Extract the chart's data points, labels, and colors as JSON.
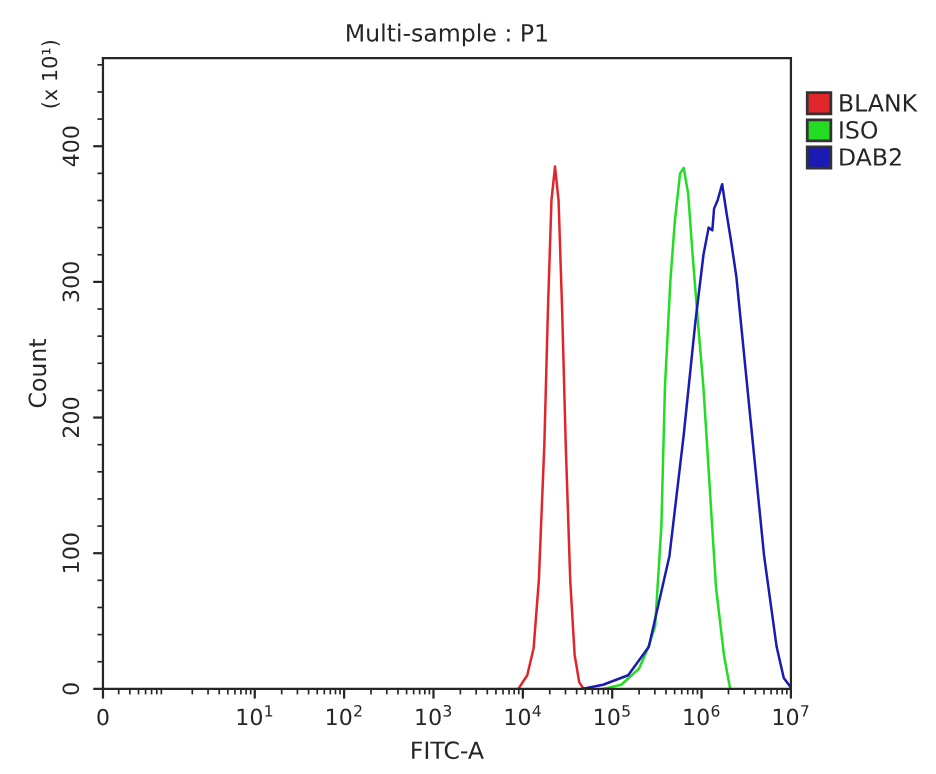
{
  "chart_data": {
    "type": "line",
    "title": "Multi-sample : P1",
    "xlabel": "FITC-A",
    "ylabel": "Count",
    "annotations": [
      "(x 10¹)"
    ],
    "log": "x",
    "xlim": [
      0.2,
      10000000
    ],
    "ylim": [
      0,
      465
    ],
    "xticks": [
      {
        "value": 0.2,
        "label": "0"
      },
      {
        "value": 10,
        "label": "10$^{1}$"
      },
      {
        "value": 100,
        "label": "10$^{2}$"
      },
      {
        "value": 1000,
        "label": "10$^{3}$"
      },
      {
        "value": 10000,
        "label": "10$^{4}$"
      },
      {
        "value": 100000,
        "label": "10$^{5}$"
      },
      {
        "value": 1000000,
        "label": "10$^{6}$"
      },
      {
        "value": 10000000,
        "label": "10$^{7}$"
      }
    ],
    "yticks": [
      0,
      100,
      200,
      300,
      400
    ],
    "grid": false,
    "legend": "top right",
    "marker": "none",
    "line_style": "solid",
    "series": [
      {
        "name": "BLANK",
        "color": "#e0262b",
        "x": [
          8900,
          11200,
          13200,
          15100,
          17400,
          19100,
          20900,
          22900,
          25100,
          27500,
          30200,
          33900,
          38000,
          42700,
          47900
        ],
        "values": [
          0,
          10,
          30,
          80,
          180,
          280,
          360,
          385,
          360,
          280,
          180,
          80,
          25,
          5,
          0
        ]
      },
      {
        "name": "ISO",
        "color": "#22dd22",
        "x": [
          79000,
          126000,
          200000,
          251000,
          302000,
          355000,
          389000,
          447000,
          501000,
          575000,
          631000,
          708000,
          794000,
          912000,
          1050000,
          1230000,
          1450000,
          1780000,
          2090000
        ],
        "values": [
          0,
          3,
          15,
          30,
          46,
          120,
          222,
          300,
          344,
          380,
          384,
          365,
          320,
          270,
          222,
          150,
          75,
          25,
          0
        ]
      },
      {
        "name": "DAB2",
        "color": "#1a1ab4",
        "x": [
          45700,
          79000,
          151000,
          257000,
          437000,
          631000,
          851000,
          1050000,
          1200000,
          1320000,
          1380000,
          1510000,
          1700000,
          1910000,
          2140000,
          2450000,
          3550000,
          5010000,
          6920000,
          8320000,
          10000000
        ],
        "values": [
          0,
          3,
          10,
          31,
          98,
          187,
          270,
          320,
          340,
          338,
          354,
          360,
          372,
          350,
          330,
          304,
          197,
          98,
          31,
          8,
          1
        ]
      }
    ]
  }
}
